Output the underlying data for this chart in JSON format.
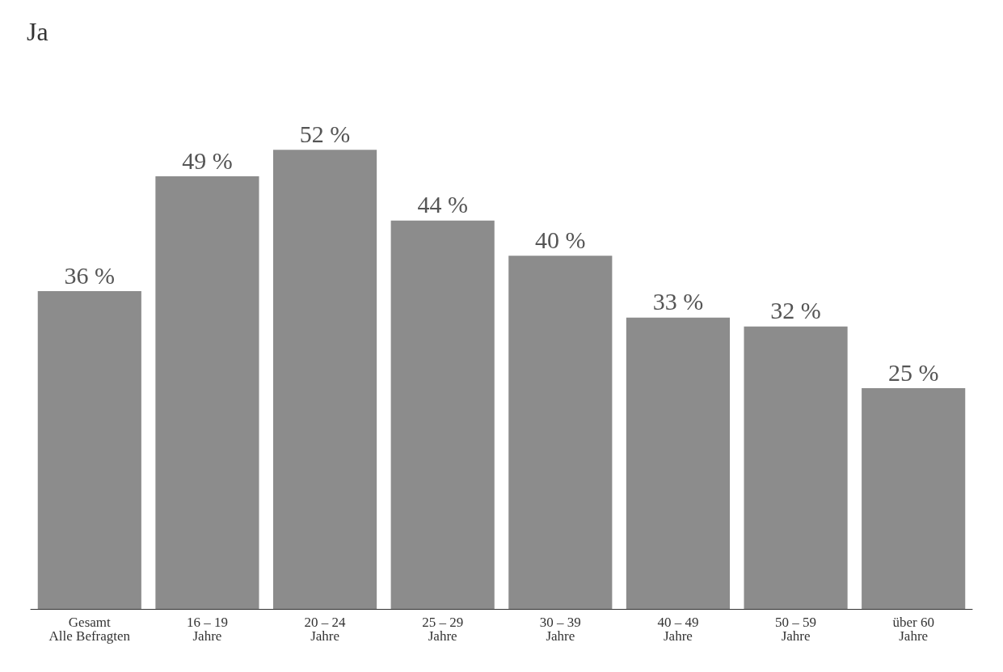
{
  "chart_data": {
    "type": "bar",
    "title": "Ja",
    "categories": [
      "Gesamt\nAlle Befragten",
      "16 – 19\nJahre",
      "20 – 24\nJahre",
      "25 – 29\nJahre",
      "30 – 39\nJahre",
      "40 – 49\nJahre",
      "50 – 59\nJahre",
      "über 60\nJahre"
    ],
    "values": [
      36,
      49,
      52,
      44,
      40,
      33,
      32,
      25
    ],
    "value_labels": [
      "36 %",
      "49 %",
      "52 %",
      "44 %",
      "40 %",
      "33 %",
      "32 %",
      "25 %"
    ],
    "color": "#8c8c8c"
  }
}
